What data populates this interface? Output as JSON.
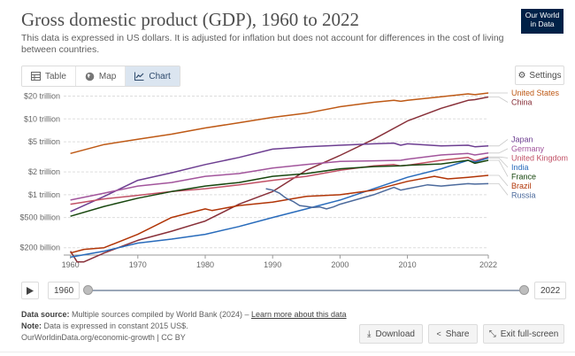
{
  "header": {
    "title": "Gross domestic product (GDP), 1960 to 2022",
    "subtitle": "This data is expressed in US dollars. It is adjusted for inflation but does not account for differences in the cost of living between countries.",
    "logo_line1": "Our World",
    "logo_line2": "in Data"
  },
  "tabs": [
    {
      "label": "Table",
      "icon": "table-icon"
    },
    {
      "label": "Map",
      "icon": "globe-icon"
    },
    {
      "label": "Chart",
      "icon": "line-chart-icon",
      "active": true
    }
  ],
  "settings_label": "Settings",
  "timeline": {
    "start_label": "1960",
    "end_label": "2022",
    "start_year": 1960,
    "end_year": 2022
  },
  "footer": {
    "source_label": "Data source:",
    "source_text": "Multiple sources compiled by World Bank (2024) – ",
    "source_link": "Learn more about this data",
    "note_label": "Note:",
    "note_text": "Data is expressed in constant 2015 US$.",
    "url": "OurWorldinData.org/economic-growth | CC BY"
  },
  "actions": {
    "download": "Download",
    "share": "Share",
    "fullscreen": "Exit full-screen"
  },
  "colors": {
    "accent": "#002147",
    "active_tab": "#dbe5f0"
  },
  "chart_data": {
    "type": "line",
    "title": "Gross domestic product (GDP), 1960 to 2022",
    "y_scale": "log",
    "ylim": [
      160000000000,
      22000000000000
    ],
    "xlim": [
      1959,
      2022
    ],
    "x_ticks": [
      1960,
      1970,
      1980,
      1990,
      2000,
      2010,
      2022
    ],
    "y_ticks": [
      {
        "value": 200000000000,
        "label": "$200 billion"
      },
      {
        "value": 500000000000,
        "label": "$500 billion"
      },
      {
        "value": 1000000000000,
        "label": "$1 trillion"
      },
      {
        "value": 2000000000000,
        "label": "$2 trillion"
      },
      {
        "value": 5000000000000,
        "label": "$5 trillion"
      },
      {
        "value": 10000000000000,
        "label": "$10 trillion"
      },
      {
        "value": 20000000000000,
        "label": "$20 trillion"
      }
    ],
    "grid": true,
    "legend": "right, end-of-line labels",
    "series": [
      {
        "name": "United States",
        "color": "#be5915",
        "x": [
          1960,
          1965,
          1970,
          1975,
          1980,
          1985,
          1990,
          1995,
          2000,
          2005,
          2008,
          2009,
          2010,
          2015,
          2019,
          2020,
          2022
        ],
        "y": [
          3.5,
          4.6,
          5.4,
          6.3,
          7.6,
          8.9,
          10.5,
          11.9,
          14.5,
          16.6,
          17.6,
          17.1,
          17.6,
          19.6,
          21.4,
          20.9,
          22.0
        ]
      },
      {
        "name": "China",
        "color": "#883039",
        "x": [
          1960,
          1961,
          1962,
          1965,
          1970,
          1975,
          1980,
          1985,
          1990,
          1995,
          2000,
          2005,
          2010,
          2015,
          2019,
          2020,
          2022
        ],
        "y": [
          0.18,
          0.13,
          0.13,
          0.17,
          0.25,
          0.33,
          0.45,
          0.75,
          1.1,
          2.1,
          3.3,
          5.4,
          9.4,
          13.8,
          17.6,
          18.0,
          19.5
        ]
      },
      {
        "name": "Japan",
        "color": "#6d3e91",
        "x": [
          1960,
          1965,
          1970,
          1975,
          1980,
          1985,
          1990,
          1995,
          2000,
          2005,
          2008,
          2009,
          2010,
          2015,
          2019,
          2020,
          2022
        ],
        "y": [
          0.6,
          0.95,
          1.55,
          1.95,
          2.5,
          3.1,
          4.0,
          4.3,
          4.5,
          4.7,
          4.8,
          4.5,
          4.7,
          4.4,
          4.5,
          4.3,
          4.4
        ]
      },
      {
        "name": "Germany",
        "color": "#a2559c",
        "x": [
          1960,
          1965,
          1970,
          1975,
          1980,
          1985,
          1990,
          1995,
          2000,
          2005,
          2009,
          2010,
          2015,
          2019,
          2020,
          2022
        ],
        "y": [
          0.85,
          1.05,
          1.3,
          1.45,
          1.75,
          1.9,
          2.25,
          2.5,
          2.75,
          2.8,
          2.85,
          2.95,
          3.35,
          3.5,
          3.35,
          3.55
        ]
      },
      {
        "name": "United Kingdom",
        "color": "#c15065",
        "x": [
          1960,
          1965,
          1970,
          1975,
          1980,
          1985,
          1990,
          1995,
          2000,
          2005,
          2008,
          2009,
          2010,
          2015,
          2019,
          2020,
          2022
        ],
        "y": [
          0.75,
          0.88,
          0.98,
          1.1,
          1.2,
          1.35,
          1.55,
          1.75,
          2.1,
          2.4,
          2.5,
          2.4,
          2.45,
          2.85,
          3.1,
          2.8,
          3.15
        ]
      },
      {
        "name": "India",
        "color": "#286bbb",
        "x": [
          1960,
          1965,
          1970,
          1975,
          1980,
          1985,
          1990,
          1995,
          2000,
          2005,
          2010,
          2015,
          2019,
          2020,
          2022
        ],
        "y": [
          0.15,
          0.18,
          0.23,
          0.26,
          0.3,
          0.38,
          0.5,
          0.65,
          0.85,
          1.2,
          1.7,
          2.2,
          2.85,
          2.7,
          3.05
        ]
      },
      {
        "name": "France",
        "color": "#18470f",
        "x": [
          1960,
          1965,
          1970,
          1975,
          1980,
          1985,
          1990,
          1995,
          2000,
          2005,
          2009,
          2010,
          2015,
          2019,
          2020,
          2022
        ],
        "y": [
          0.52,
          0.7,
          0.9,
          1.1,
          1.3,
          1.45,
          1.75,
          1.9,
          2.2,
          2.35,
          2.4,
          2.45,
          2.55,
          2.85,
          2.6,
          2.85
        ]
      },
      {
        "name": "Brazil",
        "color": "#b13507",
        "x": [
          1960,
          1962,
          1965,
          1970,
          1975,
          1980,
          1981,
          1985,
          1990,
          1995,
          2000,
          2005,
          2010,
          2014,
          2016,
          2019,
          2022
        ],
        "y": [
          0.17,
          0.19,
          0.2,
          0.3,
          0.5,
          0.65,
          0.62,
          0.72,
          0.8,
          0.95,
          1.0,
          1.15,
          1.5,
          1.75,
          1.62,
          1.7,
          1.8
        ]
      },
      {
        "name": "Russia",
        "color": "#4c6a9c",
        "x": [
          1989,
          1990,
          1991,
          1992,
          1993,
          1994,
          1995,
          1996,
          1997,
          1998,
          1999,
          2000,
          2005,
          2008,
          2009,
          2010,
          2013,
          2015,
          2019,
          2020,
          2022
        ],
        "y": [
          1.2,
          1.15,
          1.05,
          0.9,
          0.82,
          0.72,
          0.7,
          0.68,
          0.69,
          0.65,
          0.69,
          0.75,
          1.0,
          1.25,
          1.15,
          1.2,
          1.35,
          1.3,
          1.4,
          1.38,
          1.4
        ]
      }
    ]
  }
}
